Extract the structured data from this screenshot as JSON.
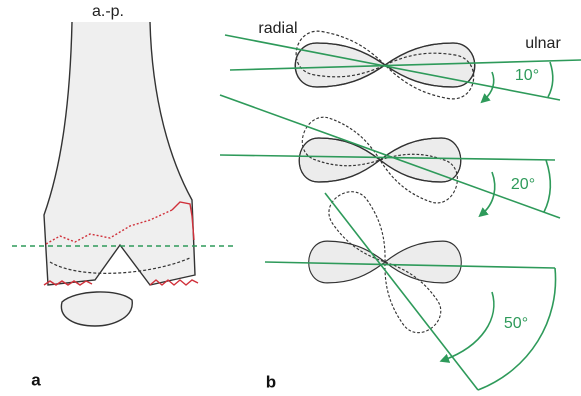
{
  "panel_a": {
    "view_label": "a.-p.",
    "panel_label": "a"
  },
  "panel_b": {
    "radial_label": "radial",
    "ulnar_label": "ulnar",
    "angles": [
      "10°",
      "20°",
      "50°"
    ],
    "panel_label": "b"
  }
}
